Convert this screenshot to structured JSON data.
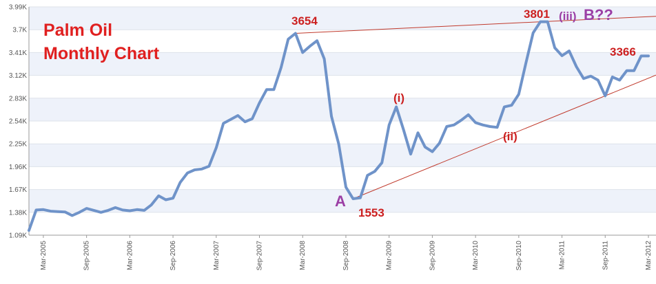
{
  "chart_data": {
    "type": "line",
    "title_lines": [
      "Palm Oil",
      "Monthly Chart"
    ],
    "xlabel": "",
    "ylabel": "",
    "ylim": [
      1090,
      3990
    ],
    "y_ticks": [
      "1.09K",
      "1.38K",
      "1.67K",
      "1.96K",
      "2.25K",
      "2.54K",
      "2.83K",
      "3.12K",
      "3.41K",
      "3.7K",
      "3.99K"
    ],
    "x_ticks": [
      "Mar-2005",
      "Sep-2005",
      "Mar-2006",
      "Sep-2006",
      "Mar-2007",
      "Sep-2007",
      "Mar-2008",
      "Sep-2008",
      "Mar-2009",
      "Sep-2009",
      "Mar-2010",
      "Sep-2010",
      "Mar-2011",
      "Sep-2011",
      "Mar-2012"
    ],
    "grid": true,
    "colors": {
      "line": "#6f93c9",
      "title": "#e02020",
      "label_red": "#cc2020",
      "label_purple": "#9b3fa5",
      "trendline": "#c0392b",
      "band": "#eef2fa"
    },
    "series": [
      {
        "x": [
          "Jan-2005",
          "Feb-2005",
          "Mar-2005",
          "Apr-2005",
          "May-2005",
          "Jun-2005",
          "Jul-2005",
          "Aug-2005",
          "Sep-2005",
          "Oct-2005",
          "Nov-2005",
          "Dec-2005",
          "Jan-2006",
          "Feb-2006",
          "Mar-2006",
          "Apr-2006",
          "May-2006",
          "Jun-2006",
          "Jul-2006",
          "Aug-2006",
          "Sep-2006",
          "Oct-2006",
          "Nov-2006",
          "Dec-2006",
          "Jan-2007",
          "Feb-2007",
          "Mar-2007",
          "Apr-2007",
          "May-2007",
          "Jun-2007",
          "Jul-2007",
          "Aug-2007",
          "Sep-2007",
          "Oct-2007",
          "Nov-2007",
          "Dec-2007",
          "Jan-2008",
          "Feb-2008",
          "Mar-2008",
          "Apr-2008",
          "May-2008",
          "Jun-2008",
          "Jul-2008",
          "Aug-2008",
          "Sep-2008",
          "Oct-2008",
          "Nov-2008",
          "Dec-2008",
          "Jan-2009",
          "Feb-2009",
          "Mar-2009",
          "Apr-2009",
          "May-2009",
          "Jun-2009",
          "Jul-2009",
          "Aug-2009",
          "Sep-2009",
          "Oct-2009",
          "Nov-2009",
          "Dec-2009",
          "Jan-2010",
          "Feb-2010",
          "Mar-2010",
          "Apr-2010",
          "May-2010",
          "Jun-2010",
          "Jul-2010",
          "Aug-2010",
          "Sep-2010",
          "Oct-2010",
          "Nov-2010",
          "Dec-2010",
          "Jan-2011",
          "Feb-2011",
          "Mar-2011",
          "Apr-2011",
          "May-2011",
          "Jun-2011",
          "Jul-2011",
          "Aug-2011",
          "Sep-2011",
          "Oct-2011",
          "Nov-2011",
          "Dec-2011",
          "Jan-2012",
          "Feb-2012",
          "Mar-2012"
        ],
        "values": [
          1150,
          1410,
          1415,
          1395,
          1390,
          1385,
          1340,
          1380,
          1430,
          1405,
          1380,
          1405,
          1440,
          1410,
          1400,
          1415,
          1405,
          1475,
          1590,
          1540,
          1560,
          1760,
          1880,
          1920,
          1930,
          1965,
          2200,
          2510,
          2560,
          2610,
          2530,
          2570,
          2770,
          2940,
          2940,
          3220,
          3580,
          3654,
          3410,
          3490,
          3560,
          3330,
          2600,
          2250,
          1700,
          1553,
          1565,
          1850,
          1900,
          2010,
          2490,
          2720,
          2430,
          2120,
          2390,
          2210,
          2150,
          2260,
          2470,
          2490,
          2550,
          2620,
          2520,
          2490,
          2470,
          2460,
          2720,
          2740,
          2880,
          3280,
          3660,
          3801,
          3801,
          3470,
          3370,
          3430,
          3230,
          3080,
          3110,
          3060,
          2860,
          3100,
          3060,
          3180,
          3180,
          3366,
          3366
        ]
      }
    ],
    "annotations": {
      "peak_2008": "3654",
      "peak_2011": "3801",
      "wave_iii": "(iii)",
      "wave_b": "B??",
      "last_value": "3366",
      "wave_i": "(i)",
      "wave_ii": "(ii)",
      "wave_a": "A",
      "low_2008": "1553"
    }
  }
}
